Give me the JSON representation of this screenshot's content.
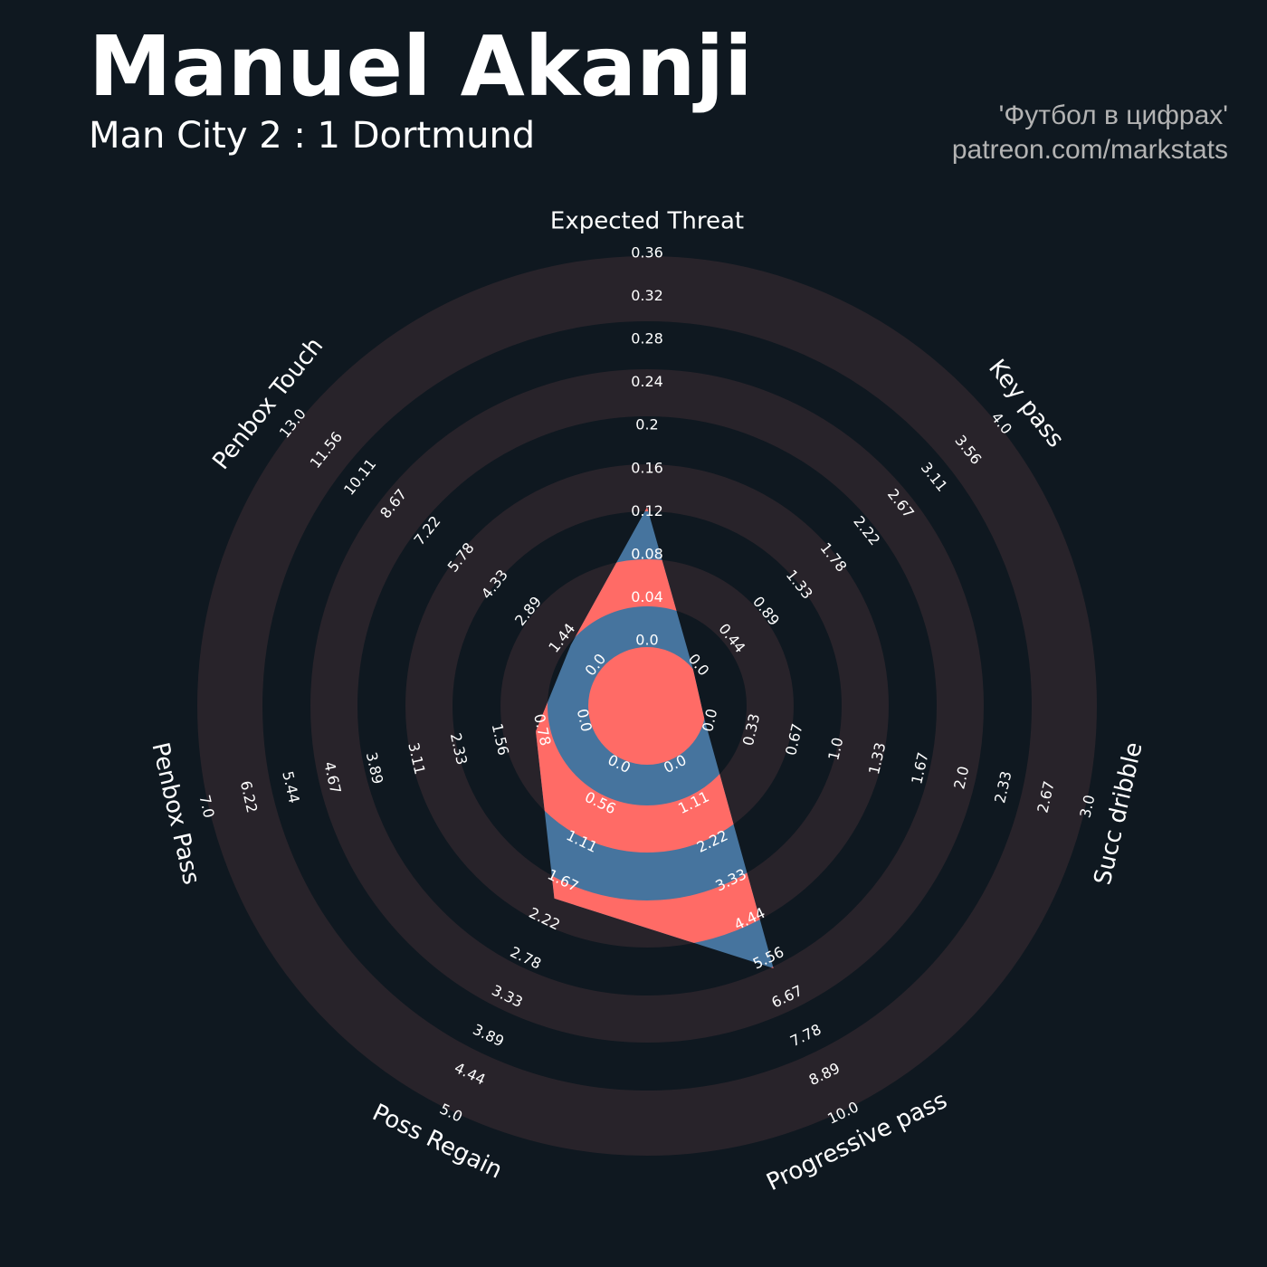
{
  "chart_data": {
    "type": "radar",
    "title": "Manuel Akanji",
    "subtitle": "Man City 2 : 1 Dortmund",
    "credits": [
      "'Футбол в цифрах'",
      "patreon.com/markstats"
    ],
    "categories": [
      "Expected Threat",
      "Key pass",
      "Succ dribble",
      "Progressive pass",
      "Poss Regain",
      "Penbox Pass",
      "Penbox Touch"
    ],
    "series": [
      {
        "color": "#46749e",
        "highlight_color": "#ff6b66",
        "values": [
          0.13,
          0,
          0,
          6.0,
          2.0,
          1.0,
          1.3
        ]
      }
    ],
    "axes": [
      {
        "lim": [
          0,
          0.36
        ],
        "ticks": [
          {
            "value": 0,
            "label": "0.0"
          },
          0.04,
          0.08,
          0.12,
          0.16,
          0.2,
          0.24,
          0.28,
          0.32,
          0.36
        ]
      },
      {
        "lim": [
          0,
          4
        ],
        "ticks": [
          {
            "value": 0,
            "label": "0.0"
          },
          0.44,
          0.89,
          1.33,
          1.78,
          2.22,
          2.67,
          3.11,
          3.56,
          {
            "value": 4,
            "label": "4.0"
          }
        ]
      },
      {
        "lim": [
          0,
          3
        ],
        "ticks": [
          {
            "value": 0,
            "label": "0.0"
          },
          0.33,
          0.67,
          {
            "value": 1,
            "label": "1.0"
          },
          1.33,
          1.67,
          {
            "value": 2,
            "label": "2.0"
          },
          2.33,
          2.67,
          {
            "value": 3,
            "label": "3.0"
          }
        ]
      },
      {
        "lim": [
          0,
          10
        ],
        "ticks": [
          {
            "value": 0,
            "label": "0.0"
          },
          1.11,
          2.22,
          3.33,
          4.44,
          5.56,
          6.67,
          7.78,
          8.89,
          {
            "value": 10,
            "label": "10.0"
          }
        ]
      },
      {
        "lim": [
          0,
          5
        ],
        "ticks": [
          {
            "value": 0,
            "label": "0.0"
          },
          0.56,
          1.11,
          1.67,
          2.22,
          2.78,
          3.33,
          3.89,
          4.44,
          {
            "value": 5,
            "label": "5.0"
          }
        ]
      },
      {
        "lim": [
          0,
          7
        ],
        "ticks": [
          {
            "value": 0,
            "label": "0.0"
          },
          0.78,
          1.56,
          2.33,
          3.11,
          3.89,
          4.67,
          5.44,
          6.22,
          {
            "value": 7,
            "label": "7.0"
          }
        ]
      },
      {
        "lim": [
          0,
          13
        ],
        "ticks": [
          {
            "value": 0,
            "label": "0.0"
          },
          1.44,
          2.89,
          4.33,
          5.78,
          7.22,
          8.67,
          10.11,
          11.56,
          {
            "value": 13,
            "label": "13.0"
          }
        ]
      }
    ]
  }
}
